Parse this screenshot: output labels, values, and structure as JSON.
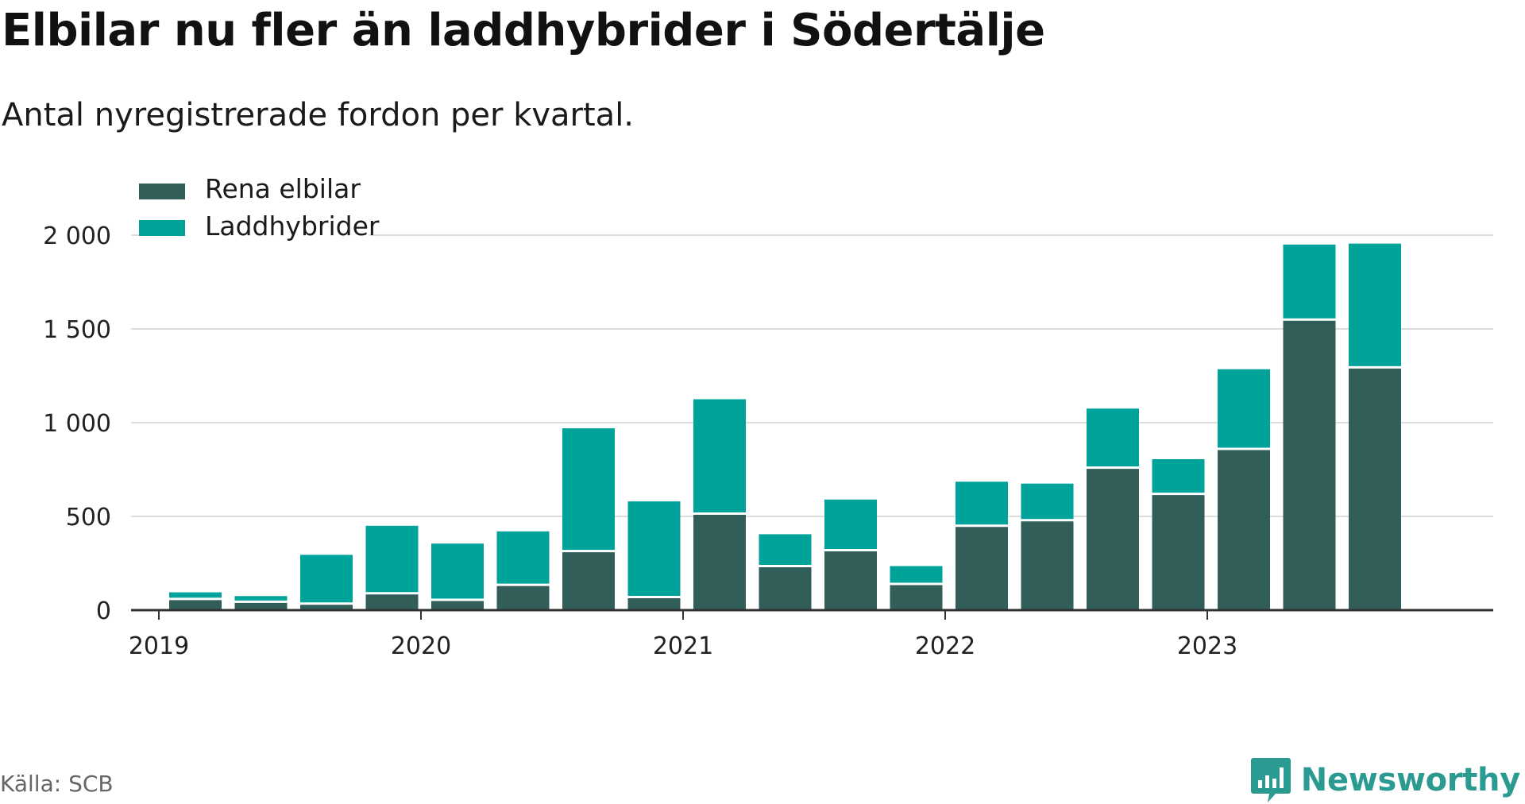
{
  "title": "Elbilar nu fler än laddhybrider i Södertälje",
  "subtitle": "Antal nyregistrerade fordon per kvartal.",
  "source": "Källa: SCB",
  "brand": {
    "name": "Newsworthy",
    "icon": "newsworthy-logo-icon"
  },
  "colors": {
    "elbilar": "#325e59",
    "laddhybrider": "#00a39a",
    "grid": "#dddddd",
    "axis": "#333333"
  },
  "chart_data": {
    "type": "bar",
    "stacked": true,
    "title": "Elbilar nu fler än laddhybrider i Södertälje",
    "xlabel": "",
    "ylabel": "",
    "ylim": [
      0,
      2000
    ],
    "yticks": [
      0,
      500,
      1000,
      1500,
      2000
    ],
    "ytick_labels": [
      "0",
      "500",
      "1 000",
      "1 500",
      "2 000"
    ],
    "xtick_labels": [
      "2019",
      "2020",
      "2021",
      "2022",
      "2023"
    ],
    "legend_position": "top-left",
    "categories": [
      "2019 K2",
      "2019 K3",
      "2019 K4",
      "2020 K1",
      "2020 K2",
      "2020 K3",
      "2020 K4",
      "2021 K1",
      "2021 K2",
      "2021 K3",
      "2021 K4",
      "2022 K1",
      "2022 K2",
      "2022 K3",
      "2022 K4",
      "2023 K1",
      "2023 K2",
      "2023 K3",
      "2023 K4"
    ],
    "series": [
      {
        "name": "Rena elbilar",
        "values": [
          60,
          45,
          35,
          90,
          55,
          135,
          315,
          70,
          515,
          235,
          320,
          140,
          450,
          480,
          760,
          620,
          860,
          1550,
          1295
        ]
      },
      {
        "name": "Laddhybrider",
        "values": [
          35,
          30,
          260,
          360,
          300,
          285,
          655,
          510,
          610,
          170,
          270,
          95,
          235,
          195,
          315,
          185,
          425,
          400,
          660
        ]
      }
    ]
  }
}
